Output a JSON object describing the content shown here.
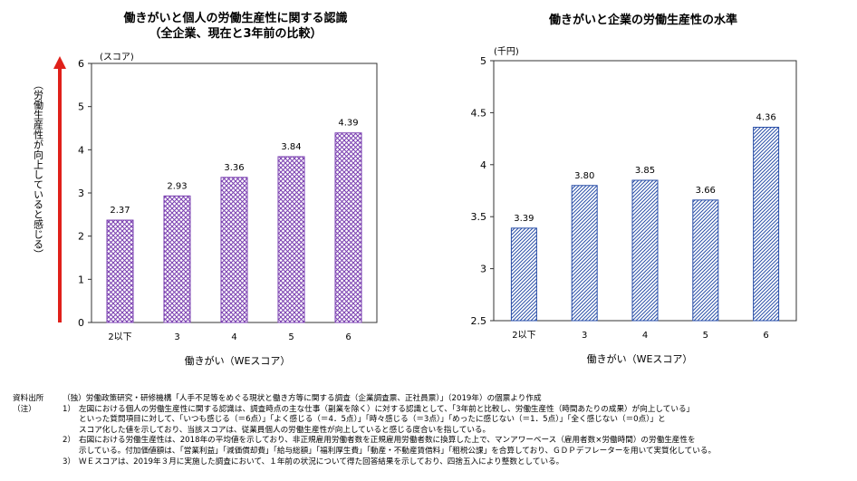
{
  "charts": {
    "left": {
      "title_line1": "働きがいと個人の労働生産性に関する認識",
      "title_line2": "（全企業、現在と3年前の比較）",
      "unit": "(スコア)",
      "ylabel": "（労働生産性が向上していると感じる）",
      "xlabel": "働きがい（WEスコア）"
    },
    "right": {
      "title": "働きがいと企業の労働生産性の水準",
      "unit": "(千円)",
      "xlabel": "働きがい（WEスコア）"
    }
  },
  "chart_data": [
    {
      "type": "bar",
      "title": "働きがいと個人の労働生産性に関する認識（全企業、現在と3年前の比較）",
      "xlabel": "働きがい（WEスコア）",
      "ylabel": "（労働生産性が向上していると感じる）",
      "unit": "(スコア)",
      "categories": [
        "2以下",
        "3",
        "4",
        "5",
        "6"
      ],
      "values": [
        2.37,
        2.93,
        3.36,
        3.84,
        4.39
      ],
      "value_labels": [
        "2.37",
        "2.93",
        "3.36",
        "3.84",
        "4.39"
      ],
      "ylim": [
        0,
        6
      ],
      "yticks": [
        "0",
        "1",
        "2",
        "3",
        "4",
        "5",
        "6"
      ],
      "grid": false,
      "pattern": "purple crosshatch",
      "color": "#7a3fb0",
      "arrow_color": "#e0201a"
    },
    {
      "type": "bar",
      "title": "働きがいと企業の労働生産性の水準",
      "xlabel": "働きがい（WEスコア）",
      "unit": "(千円)",
      "categories": [
        "2以下",
        "3",
        "4",
        "5",
        "6"
      ],
      "values": [
        3.39,
        3.8,
        3.85,
        3.66,
        4.36
      ],
      "value_labels": [
        "3.39",
        "3.80",
        "3.85",
        "3.66",
        "4.36"
      ],
      "ylim": [
        2.5,
        5
      ],
      "yticks": [
        "2.5",
        "3",
        "3.5",
        "4",
        "4.5",
        "5"
      ],
      "grid": false,
      "pattern": "blue diagonal hatch",
      "color": "#2a4fa8"
    }
  ],
  "notes": {
    "source_label": "資料出所",
    "source_text": "（独）労働政策研究・研修機構「人手不足等をめぐる現状と働き方等に関する調査（企業調査票、正社員票）」（2019年）の個票より作成",
    "note_label": "（注）",
    "items": [
      {
        "num": "1）",
        "lines": [
          "左図における個人の労働生産性に関する認識は、調査時点の主な仕事（副業を除く）に対する認識として、「3年前と比較し、労働生産性（時間あたりの成果）が向上している」",
          "といった質問項目に対して、「いつも感じる（＝6点）」「よく感じる（＝4．5点）」「時々感じる（＝3点）」「めったに感じない（＝1．5点）」「全く感じない（＝0点）」と",
          "スコア化した値を示しており、当該スコアは、従業員個人の労働生産性が向上していると感じる度合いを指している。"
        ]
      },
      {
        "num": "2）",
        "lines": [
          "右図における労働生産性は、2018年の平均値を示しており、非正規雇用労働者数を正規雇用労働者数に換算した上で、マンアワーベース（雇用者数×労働時間）の労働生産性を",
          "示している。付加価値額は、「営業利益」「減価償却費」「給与総額」「福利厚生費」「動産・不動産賃借料」「租税公課」を合算しており、ＧＤＰデフレーターを用いて実質化している。"
        ]
      },
      {
        "num": "3）",
        "lines": [
          "ＷＥスコアは、2019年３月に実施した調査において、１年前の状況について得た回答結果を示しており、四捨五入により整数としている。"
        ]
      }
    ]
  }
}
